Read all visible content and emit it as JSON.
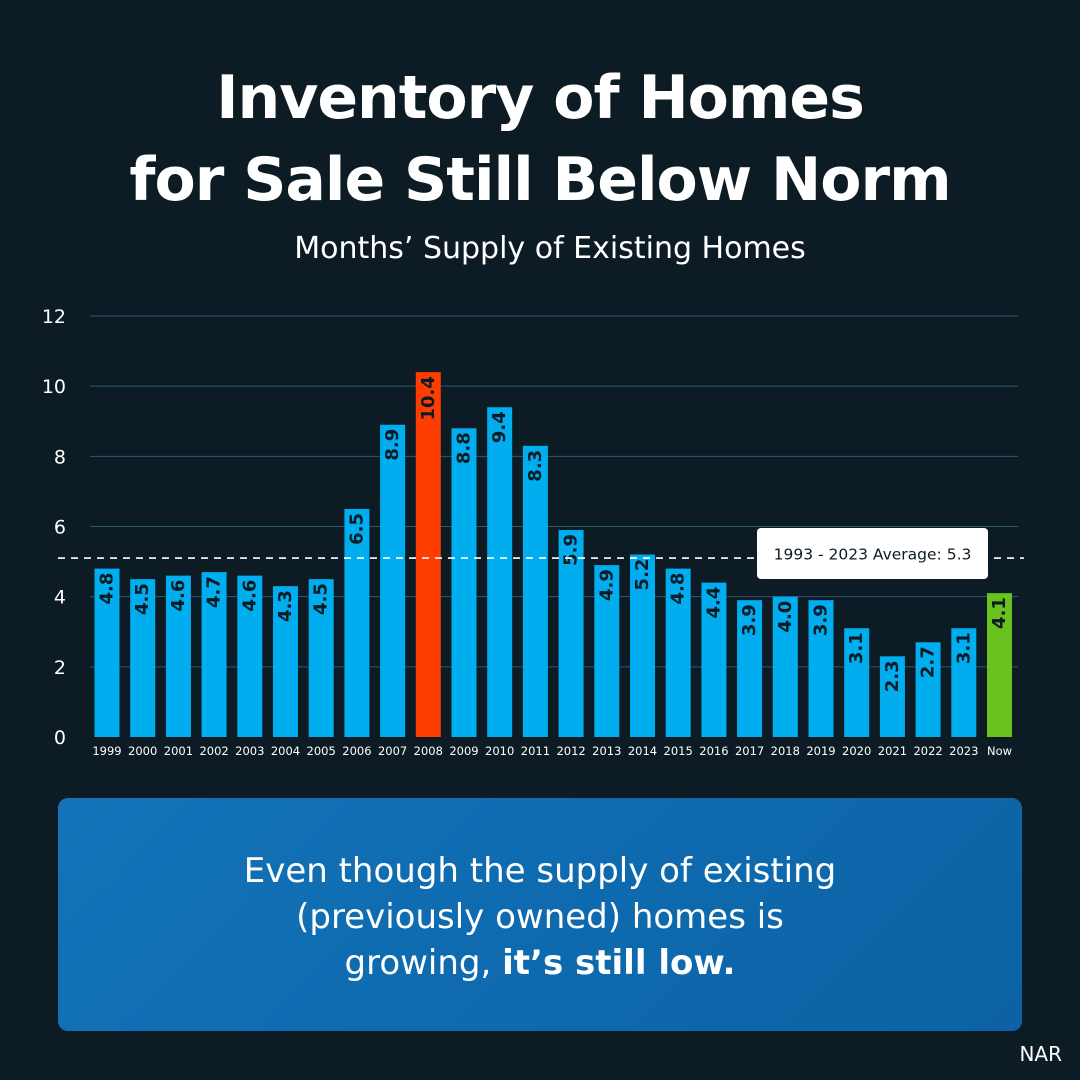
{
  "title_line1": "Inventory of Homes",
  "title_line2": "for Sale Still Below Norm",
  "subtitle": "Months’ Supply of Existing Homes",
  "callout": {
    "line1": "Even though the supply of existing",
    "line2": "(previously owned) homes is",
    "line3_normal": "growing, ",
    "line3_bold": "it’s still low."
  },
  "source": "NAR",
  "colors": {
    "background": "#0d1b24",
    "bar_default": "#00adef",
    "bar_peak": "#ff3d00",
    "bar_now": "#6ac21e",
    "callout": "#0f6bb0"
  },
  "chart_data": {
    "type": "bar",
    "categories": [
      "1999",
      "2000",
      "2001",
      "2002",
      "2003",
      "2004",
      "2005",
      "2006",
      "2007",
      "2008",
      "2009",
      "2010",
      "2011",
      "2012",
      "2013",
      "2014",
      "2015",
      "2016",
      "2017",
      "2018",
      "2019",
      "2020",
      "2021",
      "2022",
      "2023",
      "Now"
    ],
    "values": [
      4.8,
      4.5,
      4.6,
      4.7,
      4.6,
      4.3,
      4.5,
      6.5,
      8.9,
      10.4,
      8.8,
      9.4,
      8.3,
      5.9,
      4.9,
      5.2,
      4.8,
      4.4,
      3.9,
      4.0,
      3.9,
      3.1,
      2.3,
      2.7,
      3.1,
      4.1
    ],
    "data_labels": [
      "4.8",
      "4.5",
      "4.6",
      "4.7",
      "4.6",
      "4.3",
      "4.5",
      "6.5",
      "8.9",
      "10.4",
      "8.8",
      "9.4",
      "8.3",
      "5.9",
      "4.9",
      "5.2",
      "4.8",
      "4.4",
      "3.9",
      "4.0",
      "3.9",
      "3.1",
      "2.3",
      "2.7",
      "3.1",
      "4.1"
    ],
    "highlight": {
      "2008": "peak",
      "Now": "now"
    },
    "ylim": [
      0,
      12
    ],
    "yticks": [
      0,
      2,
      4,
      6,
      8,
      10,
      12
    ],
    "grid": true,
    "reference_line": {
      "value": 5.3,
      "label": "1993 - 2023 Average: 5.3",
      "style": "dashed"
    }
  }
}
